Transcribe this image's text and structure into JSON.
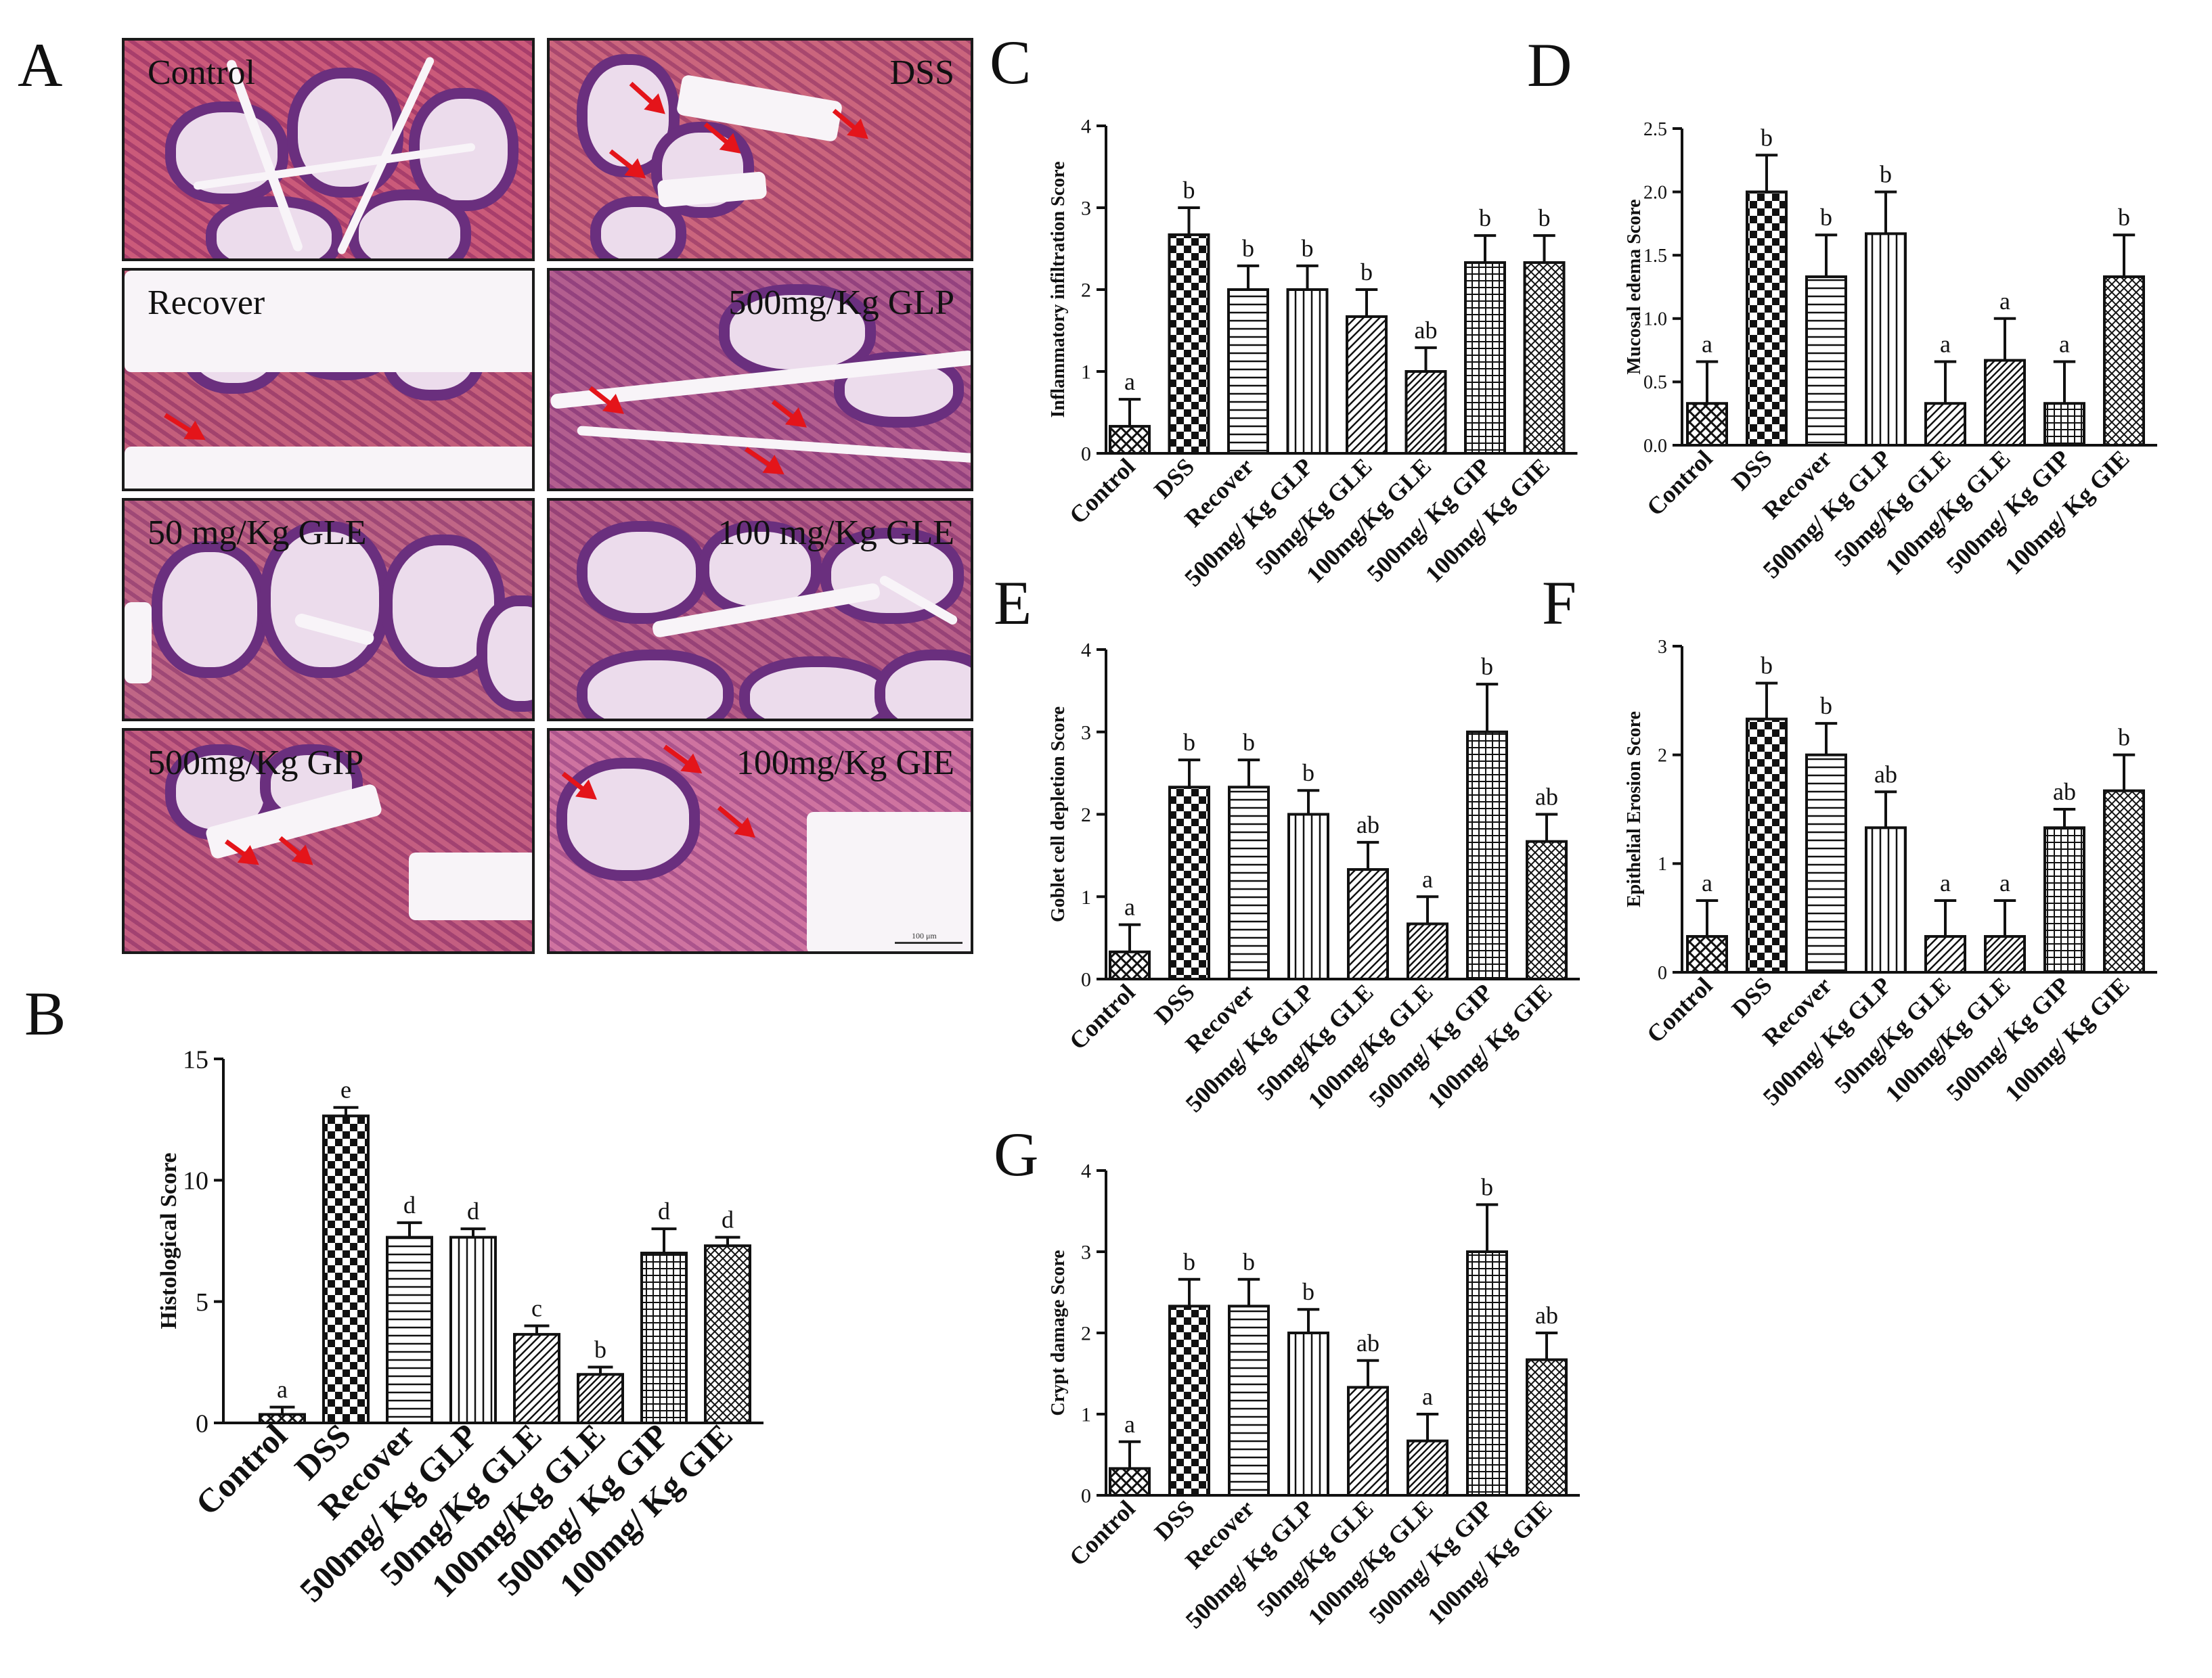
{
  "panel_letters": {
    "a": "A",
    "b": "B",
    "c": "C",
    "d": "D",
    "e": "E",
    "f": "F",
    "g": "G"
  },
  "micrographs": [
    {
      "label": "Control",
      "align": "left"
    },
    {
      "label": "DSS",
      "align": "right"
    },
    {
      "label": "Recover",
      "align": "left"
    },
    {
      "label": "500mg/Kg GLP",
      "align": "right"
    },
    {
      "label": "50 mg/Kg GLE",
      "align": "left"
    },
    {
      "label": "100 mg/Kg GLE",
      "align": "right"
    },
    {
      "label": "500mg/Kg GIP",
      "align": "left"
    },
    {
      "label": "100mg/Kg GIE",
      "align": "right"
    }
  ],
  "scale_text": "100 μm",
  "chart_data": [
    {
      "panel": "B",
      "type": "bar",
      "categories": [
        "Control",
        "DSS",
        "Recover",
        "500mg/ Kg GLP",
        "50mg/Kg GLE",
        "100mg/Kg GLE",
        "500mg/ Kg GIP",
        "100mg/ Kg GIE"
      ],
      "values": [
        0.35,
        12.65,
        7.65,
        7.65,
        3.65,
        2.0,
        7.0,
        7.3
      ],
      "errors": [
        0.3,
        0.35,
        0.6,
        0.35,
        0.35,
        0.3,
        1.0,
        0.35
      ],
      "letters": [
        "a",
        "e",
        "d",
        "d",
        "c",
        "b",
        "d",
        "d"
      ],
      "ylabel": "Histological Score",
      "ylim": [
        0,
        15
      ],
      "yticks": [
        0,
        5,
        10,
        15
      ],
      "grid": false
    },
    {
      "panel": "C",
      "type": "bar",
      "categories": [
        "Control",
        "DSS",
        "Recover",
        "500mg/ Kg GLP",
        "50mg/Kg GLE",
        "100mg/Kg GLE",
        "500mg/ Kg GIP",
        "100mg/ Kg GIE"
      ],
      "values": [
        0.33,
        2.67,
        2.0,
        2.0,
        1.67,
        1.0,
        2.33,
        2.33
      ],
      "errors": [
        0.33,
        0.33,
        0.29,
        0.29,
        0.33,
        0.29,
        0.33,
        0.33
      ],
      "letters": [
        "a",
        "b",
        "b",
        "b",
        "b",
        "ab",
        "b",
        "b"
      ],
      "ylabel": "Inflammatory infiltration Score",
      "ylim": [
        0,
        4
      ],
      "yticks": [
        0,
        1,
        2,
        3,
        4
      ],
      "grid": false
    },
    {
      "panel": "D",
      "type": "bar",
      "categories": [
        "Control",
        "DSS",
        "Recover",
        "500mg/ Kg GLP",
        "50mg/Kg GLE",
        "100mg/Kg GLE",
        "500mg/ Kg GIP",
        "100mg/ Kg GIE"
      ],
      "values": [
        0.33,
        2.0,
        1.33,
        1.67,
        0.33,
        0.67,
        0.33,
        1.33
      ],
      "errors": [
        0.33,
        0.29,
        0.33,
        0.33,
        0.33,
        0.33,
        0.33,
        0.33
      ],
      "letters": [
        "a",
        "b",
        "b",
        "b",
        "a",
        "a",
        "a",
        "b"
      ],
      "ylabel": "Mucosal edema Score",
      "ylim": [
        0,
        2.5
      ],
      "yticks": [
        0.0,
        0.5,
        1.0,
        1.5,
        2.0,
        2.5
      ],
      "ytick_labels": [
        "0.0",
        "0.5",
        "1.0",
        "1.5",
        "2.0",
        "2.5"
      ],
      "grid": false
    },
    {
      "panel": "E",
      "type": "bar",
      "categories": [
        "Control",
        "DSS",
        "Recover",
        "500mg/ Kg GLP",
        "50mg/Kg GLE",
        "100mg/Kg GLE",
        "500mg/ Kg GIP",
        "100mg/ Kg GIE"
      ],
      "values": [
        0.33,
        2.33,
        2.33,
        2.0,
        1.33,
        0.67,
        3.0,
        1.67
      ],
      "errors": [
        0.33,
        0.33,
        0.33,
        0.29,
        0.33,
        0.33,
        0.58,
        0.33
      ],
      "letters": [
        "a",
        "b",
        "b",
        "b",
        "ab",
        "a",
        "b",
        "ab"
      ],
      "ylabel": "Goblet cell depletion Score",
      "ylim": [
        0,
        4
      ],
      "yticks": [
        0,
        1,
        2,
        3,
        4
      ],
      "grid": false
    },
    {
      "panel": "F",
      "type": "bar",
      "categories": [
        "Control",
        "DSS",
        "Recover",
        "500mg/ Kg GLP",
        "50mg/Kg GLE",
        "100mg/Kg GLE",
        "500mg/ Kg GIP",
        "100mg/ Kg GIE"
      ],
      "values": [
        0.33,
        2.33,
        2.0,
        1.33,
        0.33,
        0.33,
        1.33,
        1.67
      ],
      "errors": [
        0.33,
        0.33,
        0.29,
        0.33,
        0.33,
        0.33,
        0.17,
        0.33
      ],
      "letters": [
        "a",
        "b",
        "b",
        "ab",
        "a",
        "a",
        "ab",
        "b"
      ],
      "ylabel": "Epithelial Erosion Score",
      "ylim": [
        0,
        3
      ],
      "yticks": [
        0,
        1,
        2,
        3
      ],
      "grid": false
    },
    {
      "panel": "G",
      "type": "bar",
      "categories": [
        "Control",
        "DSS",
        "Recover",
        "500mg/ Kg GLP",
        "50mg/Kg GLE",
        "100mg/Kg GLE",
        "500mg/ Kg GIP",
        "100mg/ Kg GIE"
      ],
      "values": [
        0.33,
        2.33,
        2.33,
        2.0,
        1.33,
        0.67,
        3.0,
        1.67
      ],
      "errors": [
        0.33,
        0.33,
        0.33,
        0.29,
        0.33,
        0.33,
        0.58,
        0.33
      ],
      "letters": [
        "a",
        "b",
        "b",
        "b",
        "ab",
        "a",
        "b",
        "ab"
      ],
      "ylabel": "Crypt damage Score",
      "ylim": [
        0,
        4
      ],
      "yticks": [
        0,
        1,
        2,
        3,
        4
      ],
      "grid": false
    }
  ]
}
